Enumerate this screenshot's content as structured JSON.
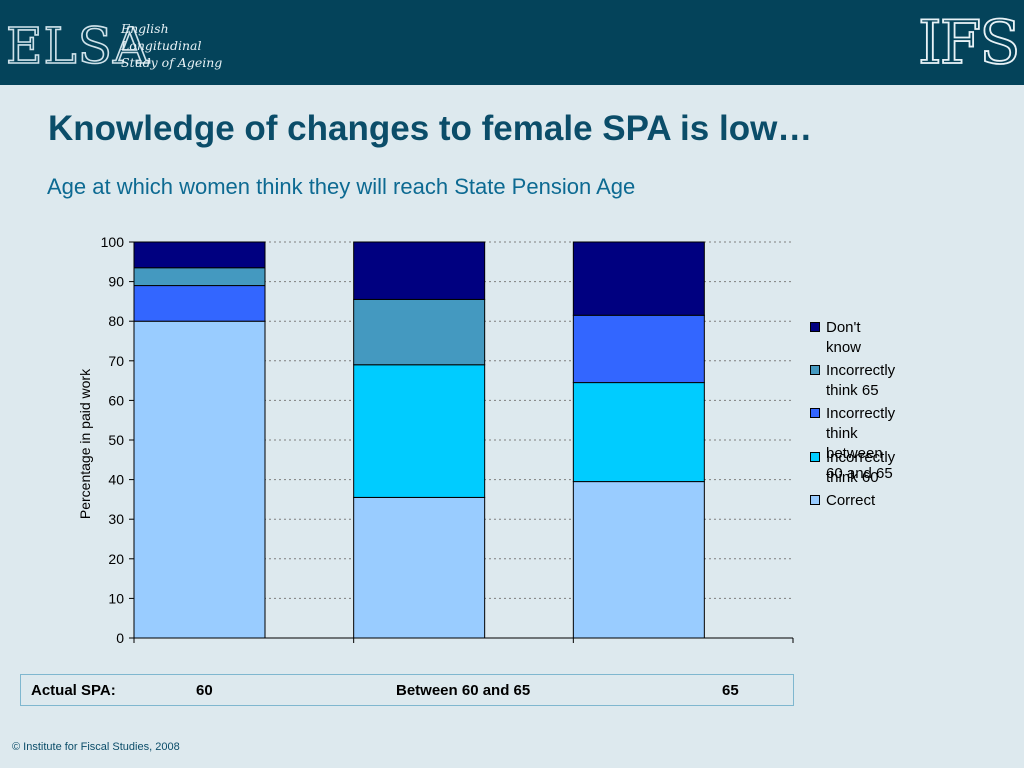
{
  "header": {
    "elsa_logo": "ELSA",
    "elsa_lines": [
      "English",
      "Longitudinal",
      "Study of Ageing"
    ],
    "ifs_logo": "IFS",
    "bg_color": "#04435a"
  },
  "slide": {
    "title": "Knowledge of changes to female SPA is low…",
    "subtitle": "Age at which women think they will reach State Pension Age"
  },
  "chart_data": {
    "type": "bar",
    "stacked": true,
    "categories": [
      "60",
      "Between 60 and 65",
      "65"
    ],
    "ylabel": "Percentage in paid work",
    "ylim": [
      0,
      100
    ],
    "yticks": [
      0,
      10,
      20,
      30,
      40,
      50,
      60,
      70,
      80,
      90,
      100
    ],
    "grid": true,
    "legend_position": "right",
    "series": [
      {
        "name": "Correct",
        "color": "#99ccff",
        "values": [
          80,
          35.5,
          39.5
        ]
      },
      {
        "name": "Incorrectly think 60",
        "color": "#00ccff",
        "values": [
          0,
          33.5,
          25
        ]
      },
      {
        "name": "Incorrectly think between 60 and 65",
        "color": "#3366ff",
        "values": [
          9,
          0,
          17
        ]
      },
      {
        "name": "Incorrectly think 65",
        "color": "#4499c0",
        "values": [
          4.5,
          16.5,
          0
        ]
      },
      {
        "name": "Don't know",
        "color": "#000080",
        "values": [
          6.5,
          14.5,
          18.5
        ]
      }
    ]
  },
  "legend": [
    {
      "label": "Don't know",
      "color": "#000080"
    },
    {
      "label": "Incorrectly think 65",
      "color": "#4499c0"
    },
    {
      "label": "Incorrectly think\nbetween 60 and 65",
      "color": "#3366ff"
    },
    {
      "label": "Incorrectly think 60",
      "color": "#00ccff"
    },
    {
      "label": "Correct",
      "color": "#99ccff"
    }
  ],
  "spa_row": {
    "label": "Actual SPA:",
    "values": [
      "60",
      "Between 60 and 65",
      "65"
    ]
  },
  "footer": {
    "copyright": "© Institute for Fiscal Studies, 2008"
  }
}
